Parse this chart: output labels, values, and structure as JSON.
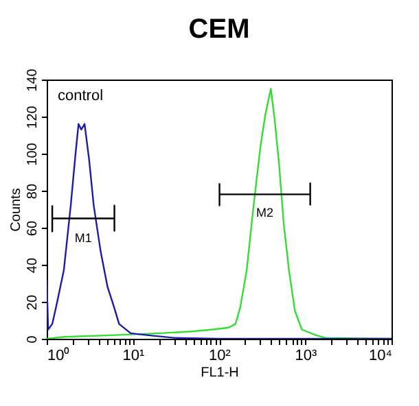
{
  "chart_data": {
    "type": "line",
    "title": "CEM",
    "xlabel": "FL1-H",
    "ylabel": "Counts",
    "log": "x",
    "xlim": [
      1,
      10000
    ],
    "ylim": [
      0,
      140
    ],
    "xticks": [
      {
        "value": 1,
        "label": "10⁰"
      },
      {
        "value": 2,
        "label": null
      },
      {
        "value": 3,
        "label": null
      },
      {
        "value": 4,
        "label": null
      },
      {
        "value": 5,
        "label": null
      },
      {
        "value": 6,
        "label": null
      },
      {
        "value": 7,
        "label": null
      },
      {
        "value": 8,
        "label": null
      },
      {
        "value": 9,
        "label": null
      },
      {
        "value": 10,
        "label": "10¹"
      },
      {
        "value": 20,
        "label": null
      },
      {
        "value": 30,
        "label": null
      },
      {
        "value": 40,
        "label": null
      },
      {
        "value": 50,
        "label": null
      },
      {
        "value": 60,
        "label": null
      },
      {
        "value": 70,
        "label": null
      },
      {
        "value": 80,
        "label": null
      },
      {
        "value": 90,
        "label": null
      },
      {
        "value": 100,
        "label": "10²"
      },
      {
        "value": 200,
        "label": null
      },
      {
        "value": 300,
        "label": null
      },
      {
        "value": 400,
        "label": null
      },
      {
        "value": 500,
        "label": null
      },
      {
        "value": 600,
        "label": null
      },
      {
        "value": 700,
        "label": null
      },
      {
        "value": 800,
        "label": null
      },
      {
        "value": 900,
        "label": null
      },
      {
        "value": 1000,
        "label": "10³"
      },
      {
        "value": 2000,
        "label": null
      },
      {
        "value": 3000,
        "label": null
      },
      {
        "value": 4000,
        "label": null
      },
      {
        "value": 5000,
        "label": null
      },
      {
        "value": 6000,
        "label": null
      },
      {
        "value": 7000,
        "label": null
      },
      {
        "value": 8000,
        "label": null
      },
      {
        "value": 9000,
        "label": null
      },
      {
        "value": 10000,
        "label": "10⁴"
      }
    ],
    "yticks": [
      0,
      20,
      40,
      60,
      80,
      100,
      120,
      140
    ],
    "grid": false,
    "line_style": "solid",
    "marker": "none",
    "series": [
      {
        "color": "#33dd33",
        "x": [
          1,
          1.58,
          6.17,
          20.9,
          48.6,
          84.1,
          128.8,
          154.9,
          175.8,
          208.9,
          251.2,
          302,
          343.6,
          398.1,
          439.5,
          496.6,
          562.3,
          645.7,
          758.6,
          912,
          1318,
          1698,
          10000
        ],
        "values": [
          0,
          1,
          2,
          3,
          4,
          5,
          6,
          8,
          17,
          37,
          72,
          104,
          121,
          135,
          119,
          94,
          62,
          37,
          15,
          5,
          2,
          0.5,
          0
        ]
      },
      {
        "color": "#1c1ca8",
        "x": [
          1,
          1.04,
          1.16,
          1.31,
          1.58,
          1.9,
          2.15,
          2.34,
          2.52,
          2.75,
          3.1,
          3.51,
          4.23,
          5.08,
          5.96,
          6.92,
          9.4,
          14.5,
          30,
          100,
          1000,
          10000
        ],
        "values": [
          32,
          5,
          8,
          19,
          37,
          72,
          99,
          116,
          113,
          116,
          97,
          72,
          47,
          28,
          18,
          8,
          3,
          2,
          0.5,
          0,
          0,
          0
        ]
      },
      {
        "name": "M1",
        "color": "#000000",
        "x": [
          1.16,
          1.16,
          1.16,
          6.1,
          6.1,
          6.1
        ],
        "values": [
          72,
          58,
          65,
          65,
          72,
          58
        ]
      },
      {
        "name": "M2",
        "color": "#000000",
        "x": [
          101,
          101,
          101,
          1140,
          1140,
          1140
        ],
        "values": [
          84,
          72,
          78,
          78,
          84,
          72
        ]
      }
    ],
    "annotations": [
      "control"
    ]
  }
}
